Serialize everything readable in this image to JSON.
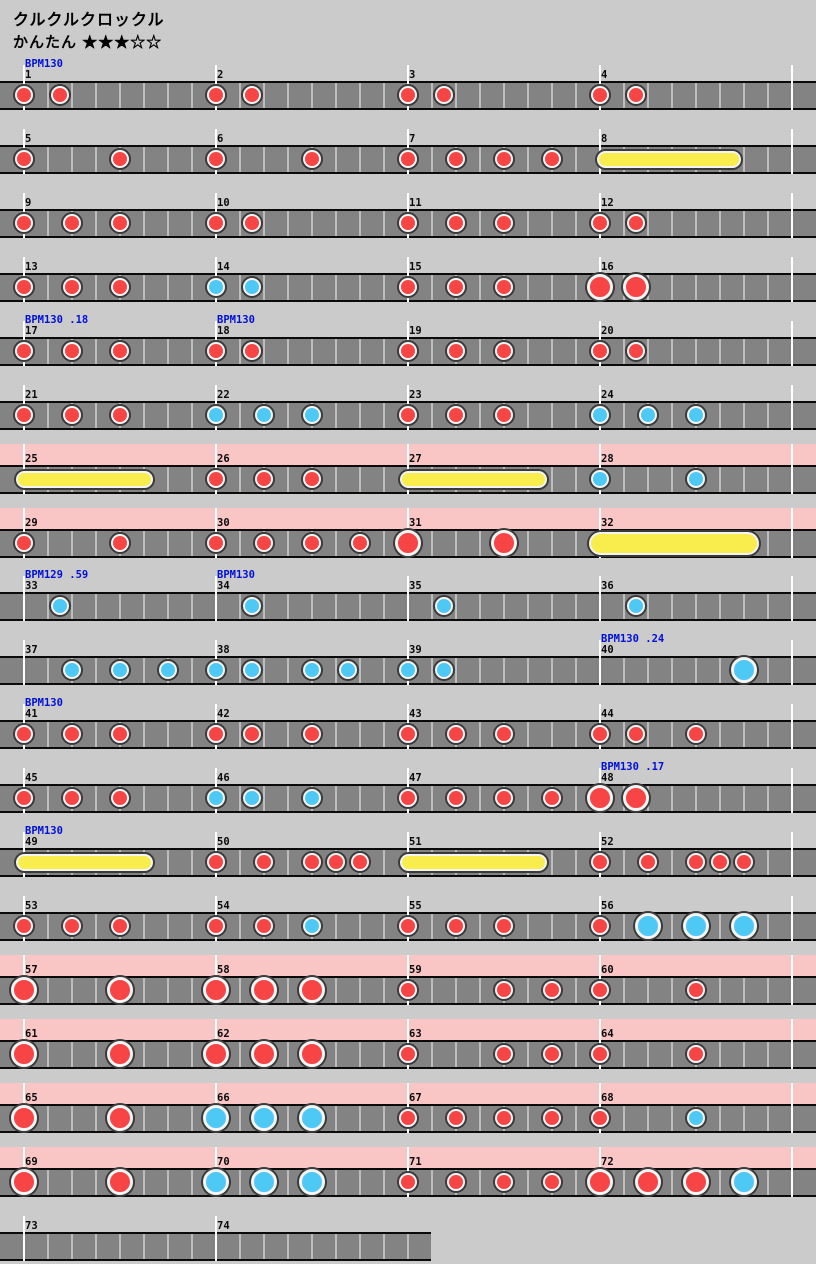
{
  "title": "クルクルクロックル",
  "difficulty": {
    "label": "かんたん",
    "stars": "★★★☆☆"
  },
  "colors": {
    "background": "#cbcbcb",
    "lane": "#838383",
    "lane_border": "#0a0a0a",
    "cell_divider": "#bdbdbd",
    "barline": "#ffffff",
    "gogo_pink": "#f9c5c5",
    "don_red": "#f74545",
    "ka_blue": "#4ec9f6",
    "roll_yellow": "#f8ed4d",
    "note_ring": "#f4f4f4",
    "note_outline": "#3a3a3a",
    "bpm_text": "#0010d8",
    "label_text": "#0a0a0a"
  },
  "chart_data": {
    "type": "taiko-note-chart",
    "title": "クルクルクロックル",
    "difficulty": "かんたん",
    "stars_filled": 3,
    "stars_total": 5,
    "measures_per_row": 4,
    "total_measures": 74,
    "gogo_time_measure_ranges": [
      [
        25,
        32
      ],
      [
        57,
        72
      ]
    ],
    "bpm_events": [
      {
        "measure": 1,
        "label": "BPM130"
      },
      {
        "measure": 17,
        "label": "BPM130 .18"
      },
      {
        "measure": 18,
        "label": "BPM130"
      },
      {
        "measure": 33,
        "label": "BPM129 .59"
      },
      {
        "measure": 34,
        "label": "BPM130"
      },
      {
        "measure": 40,
        "label": "BPM130 .24"
      },
      {
        "measure": 41,
        "label": "BPM130"
      },
      {
        "measure": 48,
        "label": "BPM130 .17"
      },
      {
        "measure": 49,
        "label": "BPM130"
      }
    ],
    "note_key": {
      "d": "don (small red)",
      "k": "ka (small blue)",
      "D": "big don (large red)",
      "K": "big ka (large blue)"
    },
    "measures": [
      {
        "n": 1,
        "notes": [
          [
            0,
            "d"
          ],
          [
            0.1875,
            "d"
          ]
        ]
      },
      {
        "n": 2,
        "notes": [
          [
            0,
            "d"
          ],
          [
            0.1875,
            "d"
          ]
        ]
      },
      {
        "n": 3,
        "notes": [
          [
            0,
            "d"
          ],
          [
            0.1875,
            "d"
          ]
        ]
      },
      {
        "n": 4,
        "notes": [
          [
            0,
            "d"
          ],
          [
            0.1875,
            "d"
          ]
        ]
      },
      {
        "n": 5,
        "notes": [
          [
            0,
            "d"
          ],
          [
            0.5,
            "d"
          ]
        ]
      },
      {
        "n": 6,
        "notes": [
          [
            0,
            "d"
          ],
          [
            0.5,
            "d"
          ]
        ]
      },
      {
        "n": 7,
        "notes": [
          [
            0,
            "d"
          ],
          [
            0.25,
            "d"
          ],
          [
            0.5,
            "d"
          ],
          [
            0.75,
            "d"
          ]
        ]
      },
      {
        "n": 8,
        "notes": [],
        "roll": [
          0.03,
          0.69
        ],
        "big_roll": false
      },
      {
        "n": 9,
        "notes": [
          [
            0,
            "d"
          ],
          [
            0.25,
            "d"
          ],
          [
            0.5,
            "d"
          ]
        ]
      },
      {
        "n": 10,
        "notes": [
          [
            0,
            "d"
          ],
          [
            0.1875,
            "d"
          ]
        ]
      },
      {
        "n": 11,
        "notes": [
          [
            0,
            "d"
          ],
          [
            0.25,
            "d"
          ],
          [
            0.5,
            "d"
          ]
        ]
      },
      {
        "n": 12,
        "notes": [
          [
            0,
            "d"
          ],
          [
            0.1875,
            "d"
          ]
        ]
      },
      {
        "n": 13,
        "notes": [
          [
            0,
            "d"
          ],
          [
            0.25,
            "d"
          ],
          [
            0.5,
            "d"
          ]
        ]
      },
      {
        "n": 14,
        "notes": [
          [
            0,
            "k"
          ],
          [
            0.1875,
            "k"
          ]
        ]
      },
      {
        "n": 15,
        "notes": [
          [
            0,
            "d"
          ],
          [
            0.25,
            "d"
          ],
          [
            0.5,
            "d"
          ]
        ]
      },
      {
        "n": 16,
        "notes": [
          [
            0,
            "D"
          ],
          [
            0.1875,
            "D"
          ]
        ]
      },
      {
        "n": 17,
        "notes": [
          [
            0,
            "d"
          ],
          [
            0.25,
            "d"
          ],
          [
            0.5,
            "d"
          ]
        ]
      },
      {
        "n": 18,
        "notes": [
          [
            0,
            "d"
          ],
          [
            0.1875,
            "d"
          ]
        ]
      },
      {
        "n": 19,
        "notes": [
          [
            0,
            "d"
          ],
          [
            0.25,
            "d"
          ],
          [
            0.5,
            "d"
          ]
        ]
      },
      {
        "n": 20,
        "notes": [
          [
            0,
            "d"
          ],
          [
            0.1875,
            "d"
          ]
        ]
      },
      {
        "n": 21,
        "notes": [
          [
            0,
            "d"
          ],
          [
            0.25,
            "d"
          ],
          [
            0.5,
            "d"
          ]
        ]
      },
      {
        "n": 22,
        "notes": [
          [
            0,
            "k"
          ],
          [
            0.25,
            "k"
          ],
          [
            0.5,
            "k"
          ]
        ]
      },
      {
        "n": 23,
        "notes": [
          [
            0,
            "d"
          ],
          [
            0.25,
            "d"
          ],
          [
            0.5,
            "d"
          ]
        ]
      },
      {
        "n": 24,
        "notes": [
          [
            0,
            "k"
          ],
          [
            0.25,
            "k"
          ],
          [
            0.5,
            "k"
          ]
        ]
      },
      {
        "n": 25,
        "notes": [],
        "roll": [
          0,
          0.63
        ],
        "big_roll": false
      },
      {
        "n": 26,
        "notes": [
          [
            0,
            "d"
          ],
          [
            0.25,
            "d"
          ],
          [
            0.5,
            "d"
          ]
        ]
      },
      {
        "n": 27,
        "notes": [],
        "roll": [
          0,
          0.68
        ],
        "big_roll": false
      },
      {
        "n": 28,
        "notes": [
          [
            0,
            "k"
          ],
          [
            0.5,
            "k"
          ]
        ]
      },
      {
        "n": 29,
        "notes": [
          [
            0,
            "d"
          ],
          [
            0.5,
            "d"
          ]
        ]
      },
      {
        "n": 30,
        "notes": [
          [
            0,
            "d"
          ],
          [
            0.25,
            "d"
          ],
          [
            0.5,
            "d"
          ],
          [
            0.75,
            "d"
          ]
        ]
      },
      {
        "n": 31,
        "notes": [
          [
            0,
            "D"
          ],
          [
            0.5,
            "D"
          ]
        ]
      },
      {
        "n": 32,
        "notes": [],
        "roll": [
          0,
          0.77
        ],
        "big_roll": true
      },
      {
        "n": 33,
        "notes": [
          [
            0.1875,
            "k"
          ]
        ]
      },
      {
        "n": 34,
        "notes": [
          [
            0.1875,
            "k"
          ]
        ]
      },
      {
        "n": 35,
        "notes": [
          [
            0.1875,
            "k"
          ]
        ]
      },
      {
        "n": 36,
        "notes": [
          [
            0.1875,
            "k"
          ]
        ]
      },
      {
        "n": 37,
        "notes": [
          [
            0.25,
            "k"
          ],
          [
            0.5,
            "k"
          ],
          [
            0.75,
            "k"
          ]
        ]
      },
      {
        "n": 38,
        "notes": [
          [
            0,
            "k"
          ],
          [
            0.1875,
            "k"
          ],
          [
            0.5,
            "k"
          ],
          [
            0.6875,
            "k"
          ]
        ]
      },
      {
        "n": 39,
        "notes": [
          [
            0,
            "k"
          ],
          [
            0.1875,
            "k"
          ]
        ]
      },
      {
        "n": 40,
        "notes": [
          [
            0.75,
            "K"
          ]
        ]
      },
      {
        "n": 41,
        "notes": [
          [
            0,
            "d"
          ],
          [
            0.25,
            "d"
          ],
          [
            0.5,
            "d"
          ]
        ]
      },
      {
        "n": 42,
        "notes": [
          [
            0,
            "d"
          ],
          [
            0.1875,
            "d"
          ],
          [
            0.5,
            "d"
          ]
        ]
      },
      {
        "n": 43,
        "notes": [
          [
            0,
            "d"
          ],
          [
            0.25,
            "d"
          ],
          [
            0.5,
            "d"
          ]
        ]
      },
      {
        "n": 44,
        "notes": [
          [
            0,
            "d"
          ],
          [
            0.1875,
            "d"
          ],
          [
            0.5,
            "d"
          ]
        ]
      },
      {
        "n": 45,
        "notes": [
          [
            0,
            "d"
          ],
          [
            0.25,
            "d"
          ],
          [
            0.5,
            "d"
          ]
        ]
      },
      {
        "n": 46,
        "notes": [
          [
            0,
            "k"
          ],
          [
            0.1875,
            "k"
          ],
          [
            0.5,
            "k"
          ]
        ]
      },
      {
        "n": 47,
        "notes": [
          [
            0,
            "d"
          ],
          [
            0.25,
            "d"
          ],
          [
            0.5,
            "d"
          ],
          [
            0.75,
            "d"
          ]
        ]
      },
      {
        "n": 48,
        "notes": [
          [
            0,
            "D"
          ],
          [
            0.1875,
            "D"
          ]
        ]
      },
      {
        "n": 49,
        "notes": [],
        "roll": [
          0,
          0.63
        ],
        "big_roll": false
      },
      {
        "n": 50,
        "notes": [
          [
            0,
            "d"
          ],
          [
            0.25,
            "d"
          ],
          [
            0.5,
            "d"
          ],
          [
            0.625,
            "d"
          ],
          [
            0.75,
            "d"
          ]
        ]
      },
      {
        "n": 51,
        "notes": [],
        "roll": [
          0,
          0.68
        ],
        "big_roll": false
      },
      {
        "n": 52,
        "notes": [
          [
            0,
            "d"
          ],
          [
            0.25,
            "d"
          ],
          [
            0.5,
            "d"
          ],
          [
            0.625,
            "d"
          ],
          [
            0.75,
            "d"
          ]
        ]
      },
      {
        "n": 53,
        "notes": [
          [
            0,
            "d"
          ],
          [
            0.25,
            "d"
          ],
          [
            0.5,
            "d"
          ]
        ]
      },
      {
        "n": 54,
        "notes": [
          [
            0,
            "d"
          ],
          [
            0.25,
            "d"
          ],
          [
            0.5,
            "k"
          ]
        ]
      },
      {
        "n": 55,
        "notes": [
          [
            0,
            "d"
          ],
          [
            0.25,
            "d"
          ],
          [
            0.5,
            "d"
          ]
        ]
      },
      {
        "n": 56,
        "notes": [
          [
            0,
            "d"
          ],
          [
            0.25,
            "K"
          ],
          [
            0.5,
            "K"
          ],
          [
            0.75,
            "K"
          ]
        ]
      },
      {
        "n": 57,
        "notes": [
          [
            0,
            "D"
          ],
          [
            0.5,
            "D"
          ]
        ]
      },
      {
        "n": 58,
        "notes": [
          [
            0,
            "D"
          ],
          [
            0.25,
            "D"
          ],
          [
            0.5,
            "D"
          ]
        ]
      },
      {
        "n": 59,
        "notes": [
          [
            0,
            "d"
          ],
          [
            0.5,
            "d"
          ],
          [
            0.75,
            "d"
          ]
        ]
      },
      {
        "n": 60,
        "notes": [
          [
            0,
            "d"
          ],
          [
            0.5,
            "d"
          ]
        ]
      },
      {
        "n": 61,
        "notes": [
          [
            0,
            "D"
          ],
          [
            0.5,
            "D"
          ]
        ]
      },
      {
        "n": 62,
        "notes": [
          [
            0,
            "D"
          ],
          [
            0.25,
            "D"
          ],
          [
            0.5,
            "D"
          ]
        ]
      },
      {
        "n": 63,
        "notes": [
          [
            0,
            "d"
          ],
          [
            0.5,
            "d"
          ],
          [
            0.75,
            "d"
          ]
        ]
      },
      {
        "n": 64,
        "notes": [
          [
            0,
            "d"
          ],
          [
            0.5,
            "d"
          ]
        ]
      },
      {
        "n": 65,
        "notes": [
          [
            0,
            "D"
          ],
          [
            0.5,
            "D"
          ]
        ]
      },
      {
        "n": 66,
        "notes": [
          [
            0,
            "K"
          ],
          [
            0.25,
            "K"
          ],
          [
            0.5,
            "K"
          ]
        ]
      },
      {
        "n": 67,
        "notes": [
          [
            0,
            "d"
          ],
          [
            0.25,
            "d"
          ],
          [
            0.5,
            "d"
          ],
          [
            0.75,
            "d"
          ]
        ]
      },
      {
        "n": 68,
        "notes": [
          [
            0,
            "d"
          ],
          [
            0.5,
            "k"
          ]
        ]
      },
      {
        "n": 69,
        "notes": [
          [
            0,
            "D"
          ],
          [
            0.5,
            "D"
          ]
        ]
      },
      {
        "n": 70,
        "notes": [
          [
            0,
            "K"
          ],
          [
            0.25,
            "K"
          ],
          [
            0.5,
            "K"
          ]
        ]
      },
      {
        "n": 71,
        "notes": [
          [
            0,
            "d"
          ],
          [
            0.25,
            "d"
          ],
          [
            0.5,
            "d"
          ],
          [
            0.75,
            "d"
          ]
        ]
      },
      {
        "n": 72,
        "notes": [
          [
            0,
            "D"
          ],
          [
            0.25,
            "D"
          ],
          [
            0.5,
            "D"
          ],
          [
            0.75,
            "K"
          ]
        ]
      },
      {
        "n": 73,
        "notes": []
      },
      {
        "n": 74,
        "notes": []
      }
    ]
  }
}
